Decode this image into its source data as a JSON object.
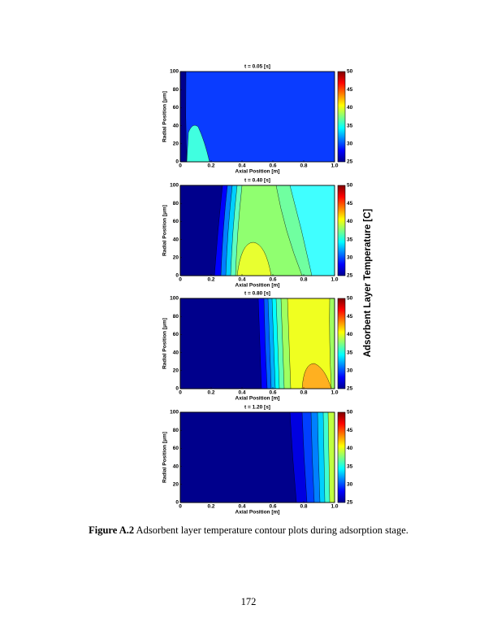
{
  "figure": {
    "panels": [
      {
        "title": "t = 0.05 [s]",
        "xlabel": "Axial Position [m]",
        "ylabel": "Radial Position [μm]"
      },
      {
        "title": "t = 0.40 [s]",
        "xlabel": "Axial Position [m]",
        "ylabel": "Radial Position [μm]"
      },
      {
        "title": "t = 0.80 [s]",
        "xlabel": "Axial Position [m]",
        "ylabel": "Radial Position [μm]"
      },
      {
        "title": "t = 1.20 [s]",
        "xlabel": "Axial Position [m]",
        "ylabel": "Radial Position [μm]"
      }
    ],
    "xticks": [
      "0",
      "0.2",
      "0.4",
      "0.6",
      "0.8",
      "1.0"
    ],
    "yticks": [
      "0",
      "20",
      "40",
      "60",
      "80",
      "100"
    ],
    "cbar_ticks": [
      "25",
      "30",
      "35",
      "40",
      "45",
      "50"
    ],
    "cbar_label": "Adsorbent Layer Temperature [C]"
  },
  "caption": {
    "label": "Figure A.2",
    "text": " Adsorbent layer temperature contour plots during adsorption stage."
  },
  "page_number": "172"
}
